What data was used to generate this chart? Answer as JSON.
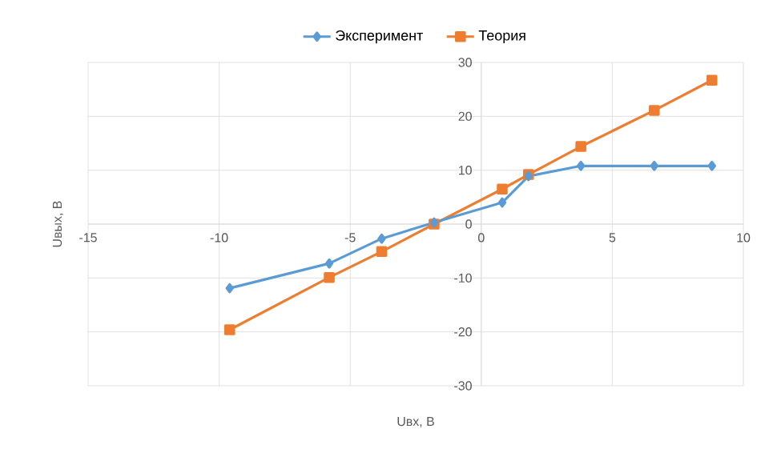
{
  "chart_data": {
    "type": "line",
    "xlabel": "Uвх, В",
    "ylabel": "Uвых, В",
    "xlim": [
      -15,
      10
    ],
    "xticks": [
      -15,
      -10,
      -5,
      0,
      5,
      10
    ],
    "ylim": [
      -30,
      30
    ],
    "yticks": [
      -30,
      -20,
      -10,
      0,
      10,
      20,
      30
    ],
    "grid": true,
    "legend": "top",
    "series": [
      {
        "name": "Эксперимент",
        "color": "#5b9bd5",
        "marker": "diamond",
        "x": [
          -9.6,
          -5.8,
          -3.8,
          -1.8,
          0.8,
          1.8,
          3.8,
          6.6,
          8.8
        ],
        "values": [
          -11.9,
          -7.3,
          -2.7,
          0.3,
          4.0,
          8.9,
          10.8,
          10.8,
          10.8
        ]
      },
      {
        "name": "Теория",
        "color": "#ed7d31",
        "marker": "square",
        "x": [
          -9.6,
          -5.8,
          -3.8,
          -1.8,
          0.8,
          1.8,
          3.8,
          6.6,
          8.8
        ],
        "values": [
          -19.6,
          -9.9,
          -5.1,
          0.0,
          6.5,
          9.2,
          14.4,
          21.1,
          26.7
        ]
      }
    ]
  }
}
